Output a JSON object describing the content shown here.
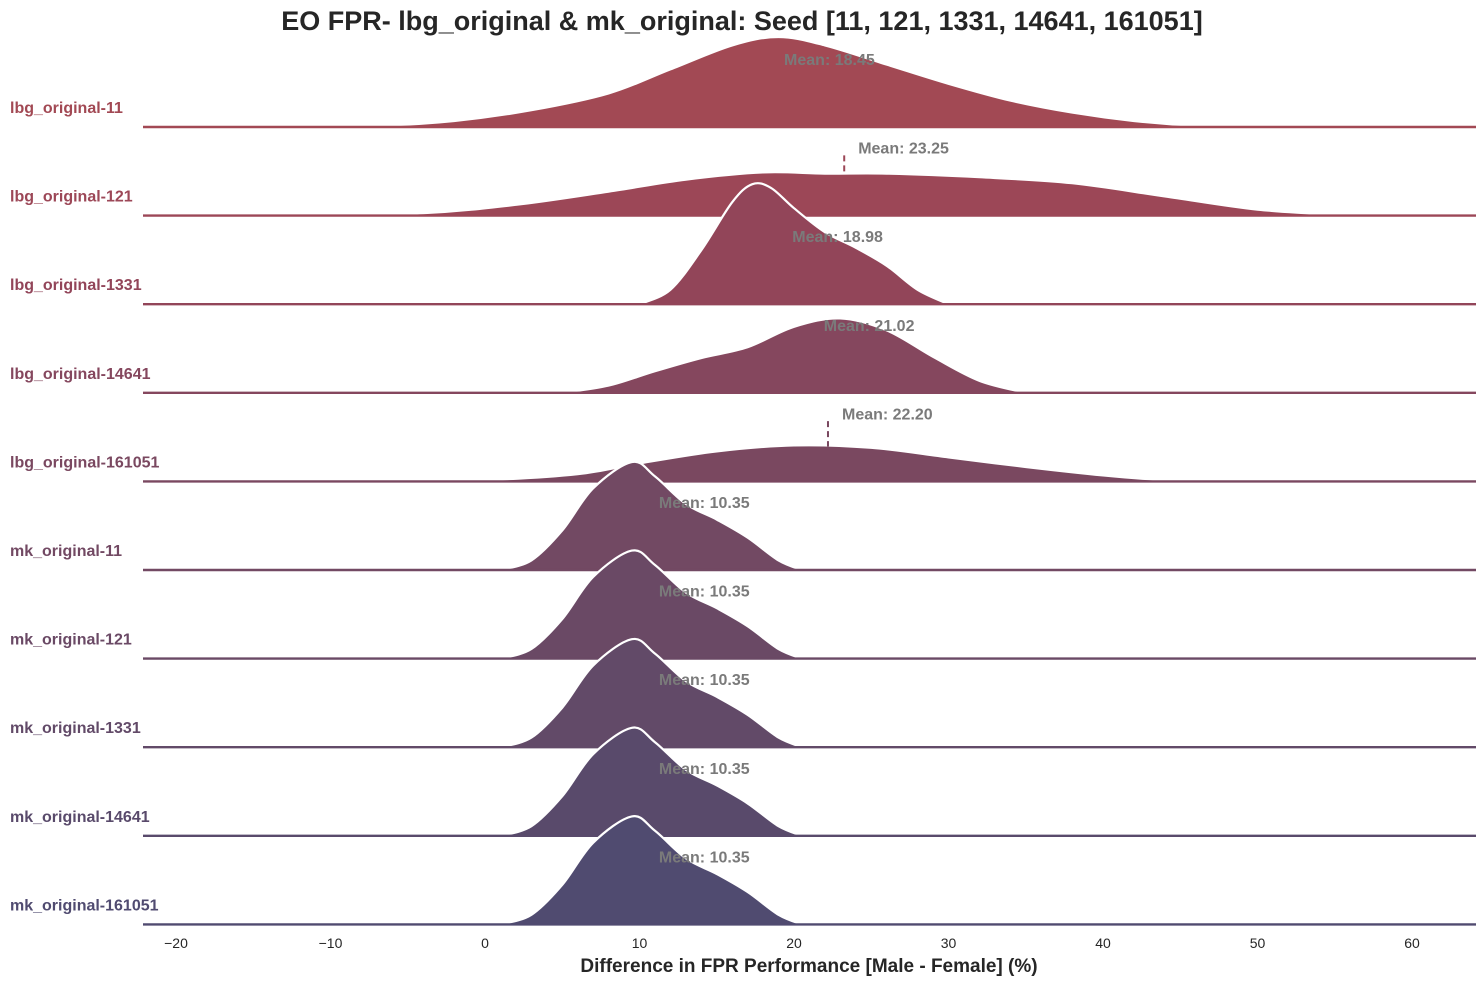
{
  "chart_data": {
    "type": "ridgeline",
    "title": "EO FPR- lbg_original & mk_original: Seed [11, 121, 1331, 14641, 161051]",
    "xlabel": "Difference in FPR Performance [Male - Female] (%)",
    "ylabel": "",
    "xlim": [
      -22,
      64
    ],
    "xticks": [
      -20,
      -10,
      0,
      10,
      20,
      30,
      40,
      50,
      60
    ],
    "xtick_labels": [
      "−20",
      "−10",
      "0",
      "10",
      "20",
      "30",
      "40",
      "50",
      "60"
    ],
    "grid": false,
    "series": [
      {
        "name": "lbg_original-11",
        "mean": 18.45,
        "mean_label": "Mean: 18.45",
        "color": "#a24954",
        "density": [
          [
            -15,
            0
          ],
          [
            -7,
            0.01
          ],
          [
            -2,
            0.05
          ],
          [
            3,
            0.14
          ],
          [
            8,
            0.28
          ],
          [
            12,
            0.48
          ],
          [
            16,
            0.68
          ],
          [
            19,
            0.75
          ],
          [
            22,
            0.68
          ],
          [
            26,
            0.52
          ],
          [
            30,
            0.36
          ],
          [
            34,
            0.22
          ],
          [
            38,
            0.12
          ],
          [
            42,
            0.05
          ],
          [
            46,
            0.01
          ],
          [
            50,
            0
          ]
        ]
      },
      {
        "name": "lbg_original-121",
        "mean": 23.25,
        "mean_label": "Mean: 23.25",
        "color": "#9c4757",
        "density": [
          [
            -12,
            0
          ],
          [
            -4,
            0.02
          ],
          [
            2,
            0.09
          ],
          [
            8,
            0.2
          ],
          [
            13,
            0.3
          ],
          [
            18,
            0.36
          ],
          [
            22,
            0.35
          ],
          [
            26,
            0.35
          ],
          [
            32,
            0.32
          ],
          [
            38,
            0.27
          ],
          [
            44,
            0.16
          ],
          [
            50,
            0.05
          ],
          [
            56,
            0
          ]
        ]
      },
      {
        "name": "lbg_original-1331",
        "mean": 18.98,
        "mean_label": "Mean: 18.98",
        "color": "#924559",
        "density": [
          [
            10,
            0
          ],
          [
            12,
            0.12
          ],
          [
            14,
            0.45
          ],
          [
            16,
            0.85
          ],
          [
            17.3,
            1.0
          ],
          [
            18.5,
            0.97
          ],
          [
            20,
            0.8
          ],
          [
            22,
            0.6
          ],
          [
            24,
            0.47
          ],
          [
            26,
            0.32
          ],
          [
            28,
            0.12
          ],
          [
            30,
            0
          ]
        ]
      },
      {
        "name": "lbg_original-14641",
        "mean": 21.02,
        "mean_label": "Mean: 21.02",
        "color": "#85475e",
        "density": [
          [
            5,
            0
          ],
          [
            8,
            0.06
          ],
          [
            11,
            0.18
          ],
          [
            14,
            0.29
          ],
          [
            17,
            0.38
          ],
          [
            20,
            0.55
          ],
          [
            23,
            0.62
          ],
          [
            26,
            0.52
          ],
          [
            29,
            0.3
          ],
          [
            32,
            0.1
          ],
          [
            35,
            0
          ]
        ]
      },
      {
        "name": "lbg_original-161051",
        "mean": 22.2,
        "mean_label": "Mean: 22.20",
        "color": "#7a4860",
        "density": [
          [
            -6,
            0
          ],
          [
            0,
            0.01
          ],
          [
            6,
            0.06
          ],
          [
            10,
            0.15
          ],
          [
            15,
            0.25
          ],
          [
            20,
            0.3
          ],
          [
            25,
            0.28
          ],
          [
            30,
            0.2
          ],
          [
            35,
            0.12
          ],
          [
            40,
            0.05
          ],
          [
            44,
            0.01
          ],
          [
            48,
            0
          ]
        ]
      },
      {
        "name": "mk_original-11",
        "mean": 10.35,
        "mean_label": "Mean: 10.35",
        "color": "#724963",
        "density": [
          [
            1,
            0
          ],
          [
            3,
            0.08
          ],
          [
            5,
            0.33
          ],
          [
            7,
            0.68
          ],
          [
            9.5,
            0.9
          ],
          [
            11,
            0.78
          ],
          [
            13,
            0.55
          ],
          [
            15,
            0.42
          ],
          [
            17,
            0.27
          ],
          [
            19,
            0.08
          ],
          [
            20.5,
            0
          ]
        ]
      },
      {
        "name": "mk_original-121",
        "mean": 10.35,
        "mean_label": "Mean: 10.35",
        "color": "#6a4965",
        "density": [
          [
            1,
            0
          ],
          [
            3,
            0.08
          ],
          [
            5,
            0.33
          ],
          [
            7,
            0.68
          ],
          [
            9.5,
            0.9
          ],
          [
            11,
            0.78
          ],
          [
            13,
            0.55
          ],
          [
            15,
            0.42
          ],
          [
            17,
            0.27
          ],
          [
            19,
            0.08
          ],
          [
            20.5,
            0
          ]
        ]
      },
      {
        "name": "mk_original-1331",
        "mean": 10.35,
        "mean_label": "Mean: 10.35",
        "color": "#624a68",
        "density": [
          [
            1,
            0
          ],
          [
            3,
            0.08
          ],
          [
            5,
            0.33
          ],
          [
            7,
            0.68
          ],
          [
            9.5,
            0.9
          ],
          [
            11,
            0.78
          ],
          [
            13,
            0.55
          ],
          [
            15,
            0.42
          ],
          [
            17,
            0.27
          ],
          [
            19,
            0.08
          ],
          [
            20.5,
            0
          ]
        ]
      },
      {
        "name": "mk_original-14641",
        "mean": 10.35,
        "mean_label": "Mean: 10.35",
        "color": "#594a6b",
        "density": [
          [
            1,
            0
          ],
          [
            3,
            0.08
          ],
          [
            5,
            0.33
          ],
          [
            7,
            0.68
          ],
          [
            9.5,
            0.9
          ],
          [
            11,
            0.78
          ],
          [
            13,
            0.55
          ],
          [
            15,
            0.42
          ],
          [
            17,
            0.27
          ],
          [
            19,
            0.08
          ],
          [
            20.5,
            0
          ]
        ]
      },
      {
        "name": "mk_original-161051",
        "mean": 10.35,
        "mean_label": "Mean: 10.35",
        "color": "#504b70",
        "density": [
          [
            1,
            0
          ],
          [
            3,
            0.08
          ],
          [
            5,
            0.33
          ],
          [
            7,
            0.68
          ],
          [
            9.5,
            0.9
          ],
          [
            11,
            0.78
          ],
          [
            13,
            0.55
          ],
          [
            15,
            0.42
          ],
          [
            17,
            0.27
          ],
          [
            19,
            0.08
          ],
          [
            20.5,
            0
          ]
        ]
      }
    ]
  }
}
